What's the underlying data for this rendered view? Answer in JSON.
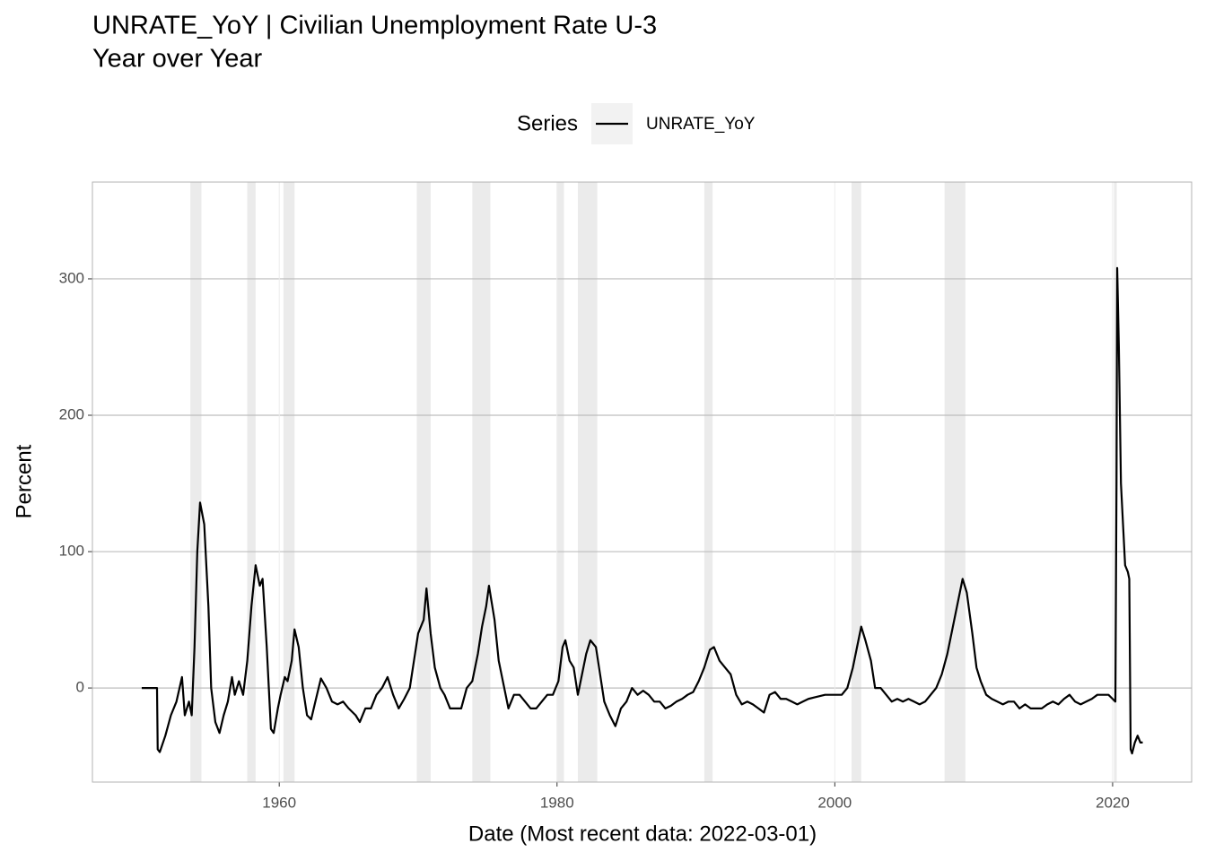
{
  "chart_data": {
    "type": "line",
    "title": "UNRATE_YoY | Civilian Unemployment Rate U-3",
    "subtitle": "Year over Year",
    "x_label": "Date (Most recent data: 2022-03-01)",
    "y_label": "Percent",
    "legend_title": "Series",
    "legend_position": "top",
    "grid": true,
    "xlim": [
      1946.55,
      2025.69
    ],
    "xticks": [
      1960,
      1980,
      2000,
      2020
    ],
    "ylim": [
      -69,
      371
    ],
    "yticks": [
      0,
      100,
      200,
      300
    ],
    "shaded_periods": [
      [
        1953.6,
        1954.4
      ],
      [
        1957.7,
        1958.3
      ],
      [
        1960.3,
        1961.1
      ],
      [
        1969.9,
        1970.9
      ],
      [
        1973.9,
        1975.2
      ],
      [
        1980.0,
        1980.5
      ],
      [
        1981.5,
        1982.9
      ],
      [
        1990.6,
        1991.2
      ],
      [
        2001.2,
        2001.9
      ],
      [
        2007.9,
        2009.4
      ],
      [
        2020.1,
        2020.3
      ]
    ],
    "shade_color": "#ebebeb",
    "x": [
      1950.1,
      1951.2,
      1951.25,
      1951.4,
      1951.8,
      1952.2,
      1952.6,
      1953.0,
      1953.2,
      1953.5,
      1953.7,
      1953.9,
      1954.1,
      1954.3,
      1954.6,
      1954.9,
      1955.1,
      1955.4,
      1955.7,
      1956.0,
      1956.3,
      1956.6,
      1956.8,
      1957.1,
      1957.4,
      1957.7,
      1958.0,
      1958.3,
      1958.6,
      1958.8,
      1959.1,
      1959.4,
      1959.6,
      1959.9,
      1960.1,
      1960.4,
      1960.6,
      1960.9,
      1961.1,
      1961.4,
      1961.7,
      1962.0,
      1962.3,
      1962.6,
      1963.0,
      1963.4,
      1963.8,
      1964.2,
      1964.6,
      1965.0,
      1965.5,
      1965.8,
      1966.2,
      1966.6,
      1967.0,
      1967.4,
      1967.8,
      1968.2,
      1968.6,
      1969.0,
      1969.4,
      1969.7,
      1970.0,
      1970.4,
      1970.6,
      1970.9,
      1971.2,
      1971.6,
      1971.9,
      1972.3,
      1972.7,
      1973.1,
      1973.5,
      1973.9,
      1974.3,
      1974.6,
      1974.9,
      1975.1,
      1975.5,
      1975.8,
      1976.2,
      1976.5,
      1976.9,
      1977.3,
      1977.7,
      1978.1,
      1978.5,
      1978.9,
      1979.3,
      1979.7,
      1980.1,
      1980.4,
      1980.6,
      1980.9,
      1981.2,
      1981.5,
      1981.8,
      1982.1,
      1982.4,
      1982.8,
      1983.1,
      1983.4,
      1983.8,
      1984.2,
      1984.6,
      1985.0,
      1985.4,
      1985.8,
      1986.2,
      1986.6,
      1987.0,
      1987.4,
      1987.8,
      1988.2,
      1988.6,
      1989.0,
      1989.4,
      1989.8,
      1990.2,
      1990.6,
      1991.0,
      1991.3,
      1991.7,
      1992.1,
      1992.5,
      1992.9,
      1993.3,
      1993.7,
      1994.1,
      1994.5,
      1994.9,
      1995.3,
      1995.7,
      1996.1,
      1996.5,
      1996.9,
      1997.3,
      1997.7,
      1998.1,
      1998.5,
      1998.9,
      1999.3,
      1999.7,
      2000.1,
      2000.5,
      2000.9,
      2001.3,
      2001.6,
      2001.9,
      2002.2,
      2002.6,
      2002.9,
      2003.3,
      2003.7,
      2004.1,
      2004.5,
      2004.9,
      2005.3,
      2005.7,
      2006.1,
      2006.5,
      2006.9,
      2007.3,
      2007.7,
      2008.1,
      2008.5,
      2008.9,
      2009.2,
      2009.5,
      2009.9,
      2010.2,
      2010.5,
      2010.9,
      2011.3,
      2011.7,
      2012.1,
      2012.5,
      2012.9,
      2013.3,
      2013.7,
      2014.1,
      2014.5,
      2014.9,
      2015.3,
      2015.7,
      2016.1,
      2016.5,
      2016.9,
      2017.3,
      2017.7,
      2018.1,
      2018.5,
      2018.9,
      2019.3,
      2019.7,
      2020.0,
      2020.2,
      2020.28,
      2020.33,
      2020.45,
      2020.6,
      2020.75,
      2020.9,
      2021.1,
      2021.2,
      2021.3,
      2021.4,
      2021.6,
      2021.8,
      2022.0,
      2022.17
    ],
    "series": [
      {
        "name": "UNRATE_YoY",
        "color": "#000000",
        "values": [
          0,
          0,
          -45,
          -47,
          -35,
          -20,
          -10,
          8,
          -20,
          -10,
          -20,
          30,
          100,
          136,
          120,
          60,
          0,
          -25,
          -33,
          -20,
          -10,
          8,
          -5,
          5,
          -5,
          20,
          60,
          90,
          75,
          80,
          30,
          -30,
          -33,
          -15,
          -5,
          8,
          5,
          20,
          43,
          30,
          0,
          -20,
          -23,
          -10,
          7,
          0,
          -10,
          -12,
          -10,
          -15,
          -20,
          -25,
          -15,
          -15,
          -5,
          0,
          8,
          -5,
          -15,
          -8,
          0,
          20,
          40,
          50,
          73,
          40,
          15,
          0,
          -5,
          -15,
          -15,
          -15,
          0,
          5,
          25,
          45,
          60,
          75,
          50,
          20,
          0,
          -15,
          -5,
          -5,
          -10,
          -15,
          -15,
          -10,
          -5,
          -5,
          5,
          30,
          35,
          20,
          15,
          -5,
          10,
          25,
          35,
          30,
          10,
          -10,
          -20,
          -28,
          -15,
          -10,
          0,
          -5,
          -2,
          -5,
          -10,
          -10,
          -15,
          -13,
          -10,
          -8,
          -5,
          -3,
          5,
          15,
          28,
          30,
          20,
          15,
          10,
          -5,
          -12,
          -10,
          -12,
          -15,
          -18,
          -5,
          -3,
          -8,
          -8,
          -10,
          -12,
          -10,
          -8,
          -7,
          -6,
          -5,
          -5,
          -5,
          -5,
          0,
          15,
          30,
          45,
          35,
          20,
          0,
          0,
          -5,
          -10,
          -8,
          -10,
          -8,
          -10,
          -12,
          -10,
          -5,
          0,
          10,
          25,
          45,
          65,
          80,
          70,
          40,
          15,
          5,
          -5,
          -8,
          -10,
          -12,
          -10,
          -10,
          -15,
          -12,
          -15,
          -15,
          -15,
          -12,
          -10,
          -12,
          -8,
          -5,
          -10,
          -12,
          -10,
          -8,
          -5,
          -5,
          -5,
          -8,
          -10,
          150,
          308,
          250,
          150,
          120,
          90,
          85,
          80,
          -45,
          -48,
          -40,
          -35,
          -40,
          -40
        ]
      }
    ]
  }
}
